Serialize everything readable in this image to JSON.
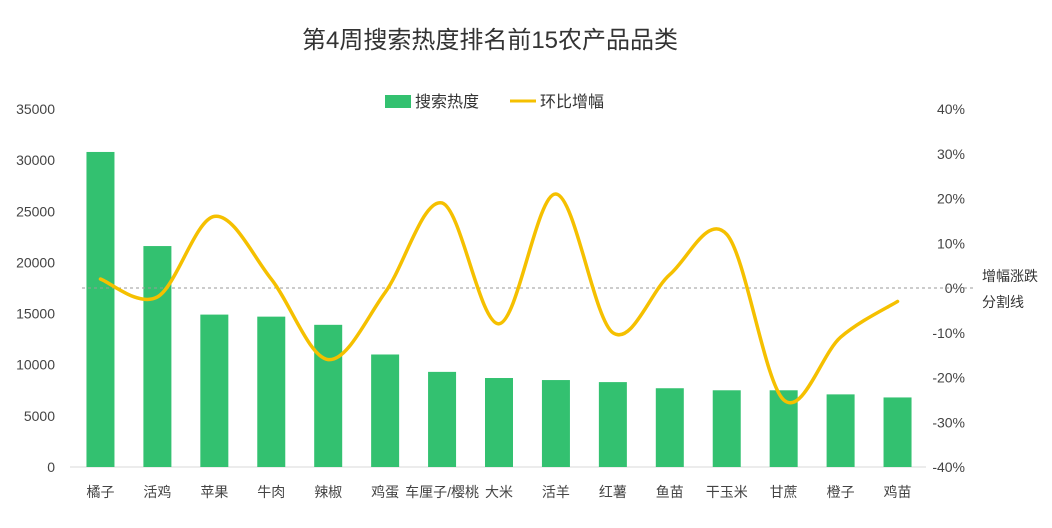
{
  "chart_data": {
    "type": "bar",
    "title": "第4周搜索热度排名前15农产品品类",
    "categories": [
      "橘子",
      "活鸡",
      "苹果",
      "牛肉",
      "辣椒",
      "鸡蛋",
      "车厘子/樱桃",
      "大米",
      "活羊",
      "红薯",
      "鱼苗",
      "干玉米",
      "甘蔗",
      "橙子",
      "鸡苗"
    ],
    "series": [
      {
        "name": "搜索热度",
        "type": "bar",
        "axis": "left",
        "color": "#33c170",
        "values": [
          30800,
          21600,
          14900,
          14700,
          13900,
          11000,
          9300,
          8700,
          8500,
          8300,
          7700,
          7500,
          7500,
          7100,
          6800
        ]
      },
      {
        "name": "环比增幅",
        "type": "line",
        "axis": "right",
        "color": "#f5c000",
        "values": [
          2,
          -2,
          16,
          2,
          -16,
          -1,
          19,
          -8,
          21,
          -10,
          3,
          12,
          -25,
          -11,
          -3
        ]
      }
    ],
    "left_axis": {
      "ylim": [
        0,
        35000
      ],
      "ticks": [
        "0",
        "5000",
        "10000",
        "15000",
        "20000",
        "25000",
        "30000",
        "35000"
      ]
    },
    "right_axis": {
      "ylim": [
        -40,
        40
      ],
      "ticks": [
        "-40%",
        "-30%",
        "-20%",
        "-10%",
        "0%",
        "10%",
        "20%",
        "30%",
        "40%"
      ]
    },
    "reference_line": {
      "value": 0,
      "label_lines": [
        "增幅涨跌",
        "分割线"
      ]
    },
    "legend": {
      "position": "top-center",
      "items": [
        "搜索热度",
        "环比增幅"
      ]
    },
    "grid": false
  }
}
